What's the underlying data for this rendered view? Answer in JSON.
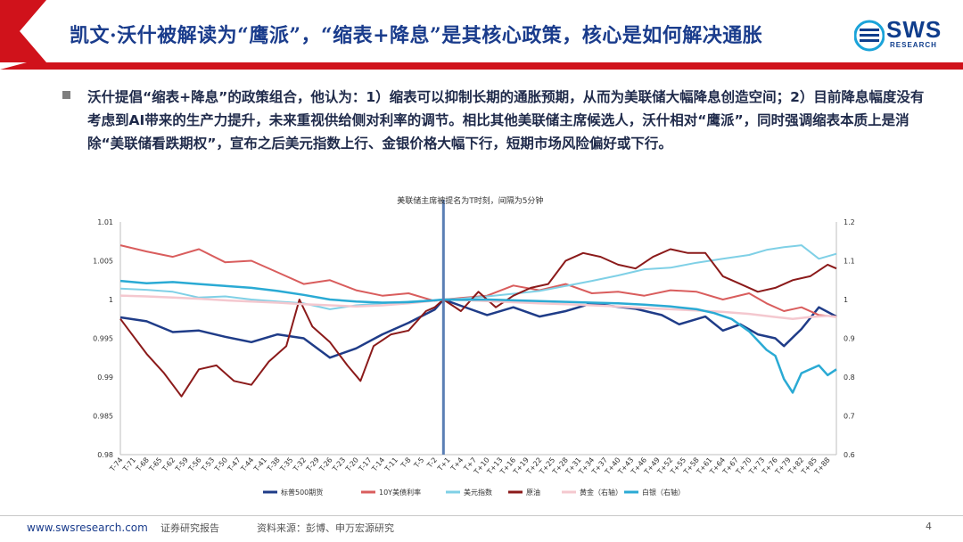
{
  "header": {
    "title": "凯文·沃什被解读为“鹰派”，“缩表+降息”是其核心政策，核心是如何解决通胀",
    "logo": "SWS",
    "logo_sub": "RESEARCH"
  },
  "body": {
    "bullet": "沃什提倡“缩表+降息”的政策组合，他认为：1）缩表可以抑制长期的通胀预期，从而为美联储大幅降息创造空间；2）目前降息幅度没有考虑到AI带来的生产力提升，未来重视供给侧对利率的调节。相比其他美联储主席候选人，沃什相对“鹰派”，同时强调缩表本质上是消除“美联储看跌期权”，宣布之后美元指数上行、金银价格大幅下行，短期市场风险偏好或下行。"
  },
  "colors": {
    "brand": "#1a3c8c",
    "header_red": "#d0121b",
    "sp500": "#1f3c88",
    "y10": "#d95d5d",
    "usd": "#7fd0e6",
    "oil": "#8b1a1a",
    "gold": "#f4c8cf",
    "silver": "#2aaad4",
    "marker": "#5b7fb5"
  },
  "footer": {
    "url": "www.swsresearch.com",
    "report_type": "证券研究报告",
    "source": "资料来源：彭博、申万宏源研究",
    "page": "4"
  },
  "chart_data": {
    "type": "line",
    "title": "美联储主席被提名为T时刻，间隔为5分钟",
    "x_labels": [
      "T-74",
      "T-71",
      "T-68",
      "T-65",
      "T-62",
      "T-59",
      "T-56",
      "T-53",
      "T-50",
      "T-47",
      "T-44",
      "T-41",
      "T-38",
      "T-35",
      "T-32",
      "T-29",
      "T-26",
      "T-23",
      "T-20",
      "T-17",
      "T-14",
      "T-11",
      "T-8",
      "T-5",
      "T-2",
      "T+1",
      "T+4",
      "T+7",
      "T+10",
      "T+13",
      "T+16",
      "T+19",
      "T+22",
      "T+25",
      "T+28",
      "T+31",
      "T+34",
      "T+37",
      "T+40",
      "T+43",
      "T+46",
      "T+49",
      "T+52",
      "T+55",
      "T+58",
      "T+61",
      "T+64",
      "T+67",
      "T+70",
      "T+73",
      "T+76",
      "T+79",
      "T+82",
      "T+85",
      "T+88"
    ],
    "x_start": -74,
    "x_end": 90,
    "marker_x": 0,
    "y_left": {
      "min": 0.98,
      "max": 1.01,
      "ticks": [
        "0.98",
        "0.985",
        "0.99",
        "0.995",
        "1",
        "1.005",
        "1.01"
      ]
    },
    "y_right": {
      "min": 0.6,
      "max": 1.2,
      "ticks": [
        "0.6",
        "0.7",
        "0.8",
        "0.9",
        "1",
        "1.1",
        "1.2"
      ]
    },
    "series": [
      {
        "name": "标普500期货",
        "axis": "left",
        "color_key": "sp500",
        "width": 2.5,
        "points": [
          [
            -74,
            0.9977
          ],
          [
            -68,
            0.9972
          ],
          [
            -62,
            0.9958
          ],
          [
            -56,
            0.996
          ],
          [
            -50,
            0.9952
          ],
          [
            -44,
            0.9945
          ],
          [
            -38,
            0.9955
          ],
          [
            -32,
            0.995
          ],
          [
            -26,
            0.9925
          ],
          [
            -20,
            0.9937
          ],
          [
            -14,
            0.9955
          ],
          [
            -8,
            0.997
          ],
          [
            -2,
            0.9987
          ],
          [
            0,
            1.0
          ],
          [
            4,
            0.9992
          ],
          [
            10,
            0.998
          ],
          [
            16,
            0.999
          ],
          [
            22,
            0.9978
          ],
          [
            28,
            0.9985
          ],
          [
            34,
            0.9995
          ],
          [
            38,
            0.9992
          ],
          [
            44,
            0.9988
          ],
          [
            50,
            0.998
          ],
          [
            54,
            0.9968
          ],
          [
            60,
            0.9978
          ],
          [
            64,
            0.996
          ],
          [
            68,
            0.9968
          ],
          [
            72,
            0.9955
          ],
          [
            76,
            0.995
          ],
          [
            78,
            0.994
          ],
          [
            82,
            0.9962
          ],
          [
            86,
            0.999
          ],
          [
            90,
            0.9978
          ]
        ]
      },
      {
        "name": "10Y美债利率",
        "axis": "left",
        "color_key": "y10",
        "width": 2,
        "points": [
          [
            -74,
            1.007
          ],
          [
            -68,
            1.0062
          ],
          [
            -62,
            1.0055
          ],
          [
            -56,
            1.0065
          ],
          [
            -50,
            1.0048
          ],
          [
            -44,
            1.005
          ],
          [
            -38,
            1.0035
          ],
          [
            -32,
            1.002
          ],
          [
            -26,
            1.0025
          ],
          [
            -20,
            1.0012
          ],
          [
            -14,
            1.0005
          ],
          [
            -8,
            1.0008
          ],
          [
            -2,
            0.9998
          ],
          [
            0,
            1.0
          ],
          [
            4,
            1.0002
          ],
          [
            10,
            1.0005
          ],
          [
            16,
            1.0018
          ],
          [
            22,
            1.0012
          ],
          [
            28,
            1.002
          ],
          [
            34,
            1.0008
          ],
          [
            40,
            1.001
          ],
          [
            46,
            1.0005
          ],
          [
            52,
            1.0012
          ],
          [
            58,
            1.001
          ],
          [
            64,
            1.0
          ],
          [
            70,
            1.0008
          ],
          [
            74,
            0.9995
          ],
          [
            78,
            0.9985
          ],
          [
            82,
            0.999
          ],
          [
            86,
            0.998
          ],
          [
            90,
            0.9978
          ]
        ]
      },
      {
        "name": "美元指数",
        "axis": "right",
        "color_key": "usd",
        "width": 2,
        "points": [
          [
            -74,
            1.028
          ],
          [
            -68,
            1.025
          ],
          [
            -62,
            1.02
          ],
          [
            -56,
            1.005
          ],
          [
            -50,
            1.008
          ],
          [
            -44,
            1.0
          ],
          [
            -38,
            0.995
          ],
          [
            -32,
            0.99
          ],
          [
            -26,
            0.975
          ],
          [
            -20,
            0.985
          ],
          [
            -14,
            0.99
          ],
          [
            -8,
            0.995
          ],
          [
            -2,
            0.998
          ],
          [
            0,
            1.0
          ],
          [
            4,
            1.002
          ],
          [
            10,
            1.008
          ],
          [
            16,
            1.015
          ],
          [
            22,
            1.022
          ],
          [
            28,
            1.035
          ],
          [
            34,
            1.048
          ],
          [
            40,
            1.062
          ],
          [
            46,
            1.078
          ],
          [
            52,
            1.082
          ],
          [
            58,
            1.095
          ],
          [
            64,
            1.105
          ],
          [
            70,
            1.115
          ],
          [
            74,
            1.128
          ],
          [
            78,
            1.135
          ],
          [
            82,
            1.14
          ],
          [
            86,
            1.105
          ],
          [
            90,
            1.118
          ]
        ]
      },
      {
        "name": "原油",
        "axis": "left",
        "color_key": "oil",
        "width": 2,
        "points": [
          [
            -74,
            0.9975
          ],
          [
            -72,
            0.996
          ],
          [
            -68,
            0.993
          ],
          [
            -64,
            0.9905
          ],
          [
            -60,
            0.9875
          ],
          [
            -56,
            0.991
          ],
          [
            -52,
            0.9915
          ],
          [
            -48,
            0.9895
          ],
          [
            -44,
            0.989
          ],
          [
            -40,
            0.992
          ],
          [
            -36,
            0.994
          ],
          [
            -33,
            1.0
          ],
          [
            -30,
            0.9965
          ],
          [
            -26,
            0.9945
          ],
          [
            -22,
            0.9915
          ],
          [
            -19,
            0.9895
          ],
          [
            -16,
            0.994
          ],
          [
            -12,
            0.9955
          ],
          [
            -8,
            0.996
          ],
          [
            -4,
            0.9985
          ],
          [
            -2,
            0.999
          ],
          [
            0,
            1.0
          ],
          [
            4,
            0.9985
          ],
          [
            8,
            1.001
          ],
          [
            12,
            0.999
          ],
          [
            16,
            1.0005
          ],
          [
            20,
            1.0015
          ],
          [
            24,
            1.002
          ],
          [
            28,
            1.005
          ],
          [
            32,
            1.006
          ],
          [
            36,
            1.0055
          ],
          [
            40,
            1.0045
          ],
          [
            44,
            1.004
          ],
          [
            48,
            1.0055
          ],
          [
            52,
            1.0065
          ],
          [
            56,
            1.006
          ],
          [
            60,
            1.006
          ],
          [
            64,
            1.003
          ],
          [
            68,
            1.002
          ],
          [
            72,
            1.001
          ],
          [
            76,
            1.0015
          ],
          [
            80,
            1.0025
          ],
          [
            84,
            1.003
          ],
          [
            88,
            1.0045
          ],
          [
            90,
            1.004
          ]
        ]
      },
      {
        "name": "黄金（右轴）",
        "axis": "right",
        "color_key": "gold",
        "width": 2.5,
        "points": [
          [
            -74,
            1.01
          ],
          [
            -68,
            1.008
          ],
          [
            -62,
            1.005
          ],
          [
            -56,
            1.002
          ],
          [
            -50,
            0.998
          ],
          [
            -44,
            0.995
          ],
          [
            -38,
            0.992
          ],
          [
            -32,
            0.988
          ],
          [
            -26,
            0.985
          ],
          [
            -20,
            0.982
          ],
          [
            -14,
            0.985
          ],
          [
            -8,
            0.99
          ],
          [
            -2,
            0.997
          ],
          [
            0,
            1.0
          ],
          [
            4,
            0.999
          ],
          [
            10,
            0.996
          ],
          [
            16,
            0.993
          ],
          [
            22,
            0.99
          ],
          [
            28,
            0.988
          ],
          [
            34,
            0.985
          ],
          [
            40,
            0.982
          ],
          [
            46,
            0.978
          ],
          [
            52,
            0.975
          ],
          [
            58,
            0.972
          ],
          [
            64,
            0.968
          ],
          [
            70,
            0.963
          ],
          [
            76,
            0.955
          ],
          [
            80,
            0.95
          ],
          [
            84,
            0.955
          ],
          [
            88,
            0.958
          ],
          [
            90,
            0.955
          ]
        ]
      },
      {
        "name": "白银（右轴）",
        "axis": "right",
        "color_key": "silver",
        "width": 2.5,
        "points": [
          [
            -74,
            1.048
          ],
          [
            -68,
            1.042
          ],
          [
            -62,
            1.045
          ],
          [
            -56,
            1.04
          ],
          [
            -50,
            1.035
          ],
          [
            -44,
            1.03
          ],
          [
            -38,
            1.022
          ],
          [
            -32,
            1.012
          ],
          [
            -26,
            1.0
          ],
          [
            -20,
            0.995
          ],
          [
            -14,
            0.992
          ],
          [
            -8,
            0.993
          ],
          [
            -2,
            0.998
          ],
          [
            0,
            1.0
          ],
          [
            4,
            0.999
          ],
          [
            10,
            1.0
          ],
          [
            16,
            0.998
          ],
          [
            22,
            0.996
          ],
          [
            28,
            0.994
          ],
          [
            34,
            0.992
          ],
          [
            40,
            0.99
          ],
          [
            46,
            0.987
          ],
          [
            52,
            0.982
          ],
          [
            58,
            0.975
          ],
          [
            62,
            0.965
          ],
          [
            66,
            0.95
          ],
          [
            70,
            0.918
          ],
          [
            74,
            0.87
          ],
          [
            76,
            0.855
          ],
          [
            78,
            0.795
          ],
          [
            80,
            0.76
          ],
          [
            82,
            0.81
          ],
          [
            86,
            0.83
          ],
          [
            88,
            0.805
          ],
          [
            90,
            0.82
          ]
        ]
      }
    ],
    "legend": [
      "标普500期货",
      "10Y美债利率",
      "美元指数",
      "原油",
      "黄金（右轴）",
      "白银（右轴）"
    ],
    "legend_position": "bottom"
  }
}
